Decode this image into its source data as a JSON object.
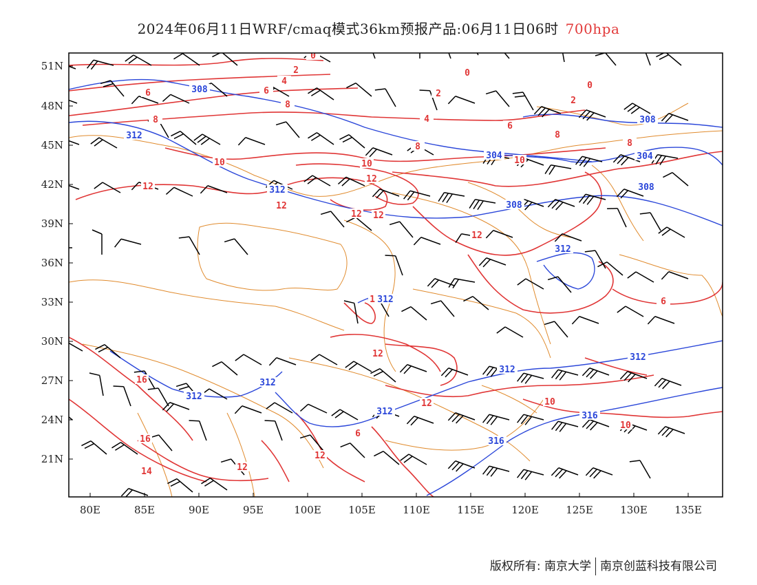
{
  "title": {
    "main": "2024年06月11日WRF/cmaq模式36km预报产品:06月11日06时",
    "level": "700hpa"
  },
  "axes": {
    "lat_labels": [
      "51N",
      "48N",
      "45N",
      "42N",
      "39N",
      "36N",
      "33N",
      "30N",
      "27N",
      "24N",
      "21N"
    ],
    "lon_labels": [
      "80E",
      "85E",
      "90E",
      "95E",
      "100E",
      "105E",
      "110E",
      "115E",
      "120E",
      "125E",
      "130E",
      "135E"
    ]
  },
  "contour_labels": {
    "temperature": [
      "0",
      "2",
      "4",
      "6",
      "8",
      "10",
      "12",
      "16",
      "14"
    ],
    "height": [
      "308",
      "312",
      "304",
      "316"
    ]
  },
  "footer": {
    "copyright": "版权所有: 南京大学",
    "company": "南京创蓝科技有限公司"
  },
  "colors": {
    "temperature": "#e03535",
    "height": "#2a46d9",
    "boundary": "#e08a2c",
    "wind": "#000000",
    "level": "#e23a3a"
  }
}
